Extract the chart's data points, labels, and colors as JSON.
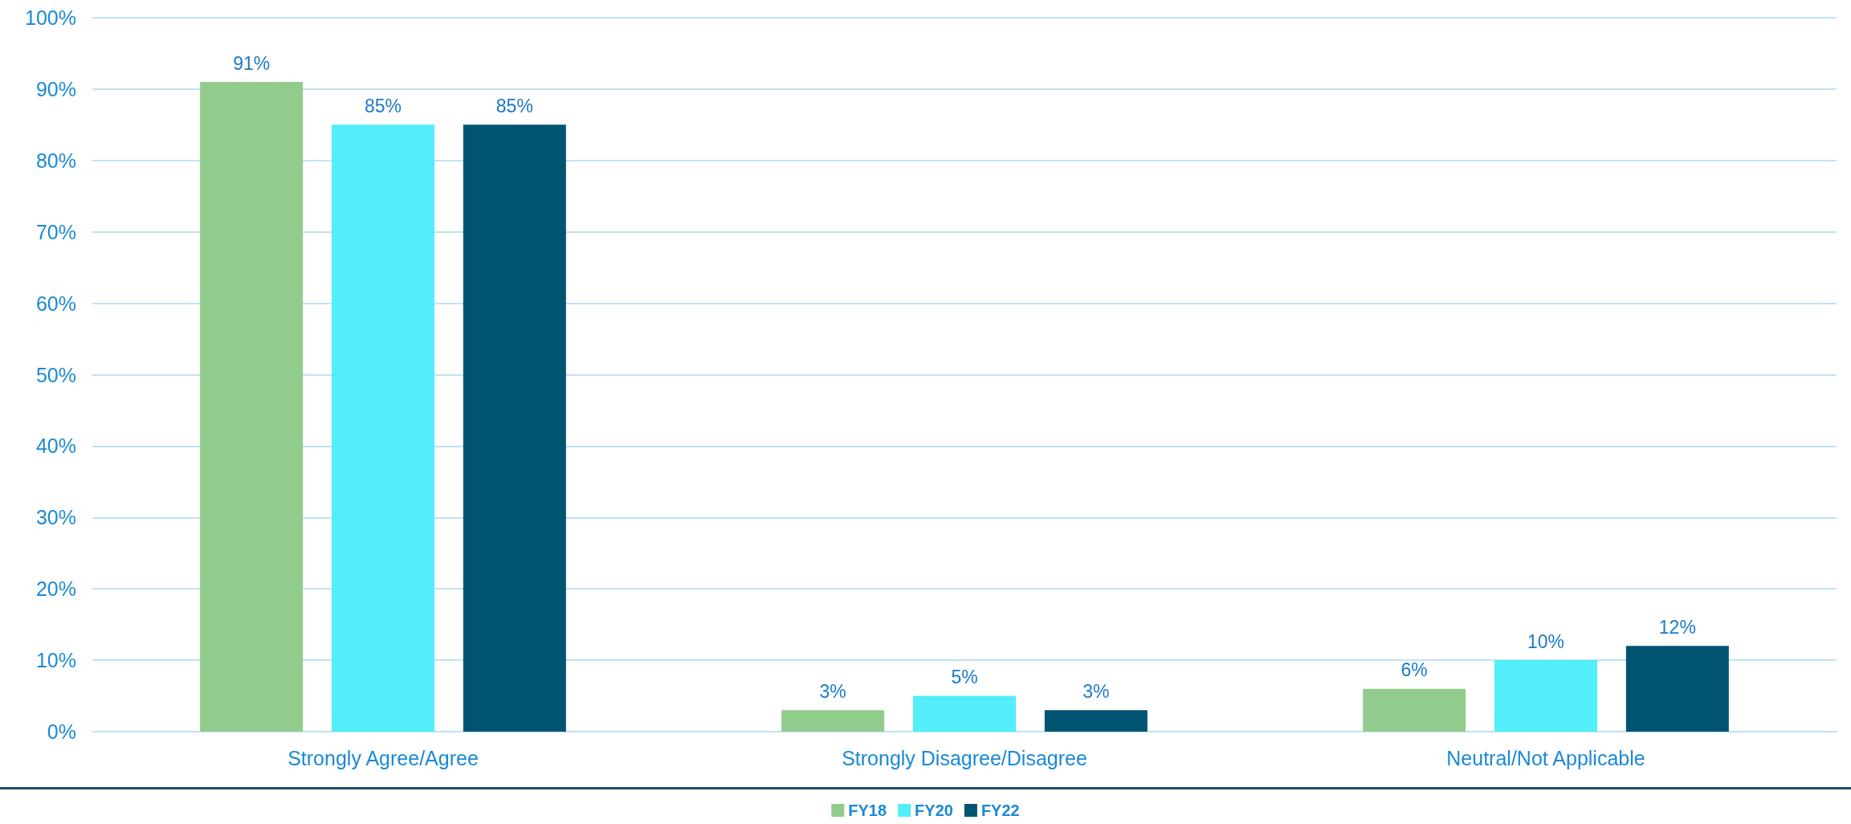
{
  "chart_data": {
    "type": "bar",
    "categories": [
      "Strongly Agree/Agree",
      "Strongly Disagree/Disagree",
      "Neutral/Not Applicable"
    ],
    "series": [
      {
        "name": "FY18",
        "color": "#92cc8c",
        "values": [
          91,
          3,
          6
        ]
      },
      {
        "name": "FY20",
        "color": "#52eefa",
        "values": [
          85,
          5,
          10
        ]
      },
      {
        "name": "FY22",
        "color": "#005472",
        "values": [
          85,
          3,
          12
        ]
      }
    ],
    "ylim": [
      0,
      100
    ],
    "yticks": [
      {
        "value": 0,
        "label": "0%"
      },
      {
        "value": 10,
        "label": "10%"
      },
      {
        "value": 20,
        "label": "20%"
      },
      {
        "value": 30,
        "label": "30%"
      },
      {
        "value": 40,
        "label": "40%"
      },
      {
        "value": 50,
        "label": "50%"
      },
      {
        "value": 60,
        "label": "60%"
      },
      {
        "value": 70,
        "label": "70%"
      },
      {
        "value": 80,
        "label": "80%"
      },
      {
        "value": 90,
        "label": "90%"
      },
      {
        "value": 100,
        "label": "100%"
      }
    ],
    "value_labels": [
      [
        "91%",
        "3%",
        "6%"
      ],
      [
        "85%",
        "5%",
        "10%"
      ],
      [
        "85%",
        "3%",
        "12%"
      ]
    ],
    "grid": "y",
    "legend": "bottom"
  }
}
